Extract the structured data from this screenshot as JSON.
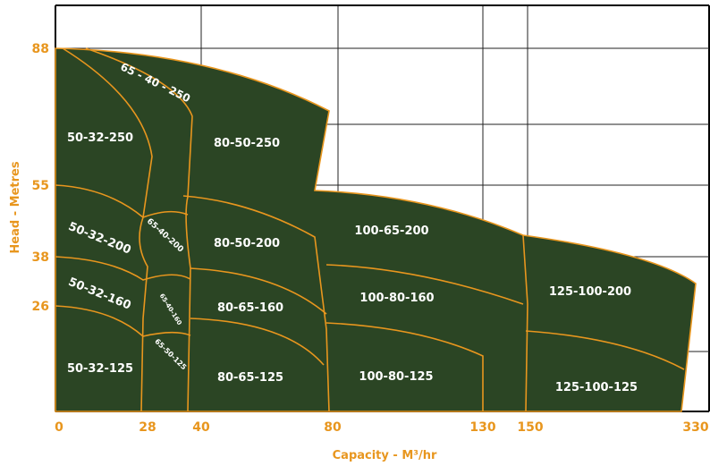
{
  "chart_data": {
    "type": "area",
    "title": "",
    "xlabel": "Capacity - M³/hr",
    "ylabel": "Head - Metres",
    "x_ticks": [
      "0",
      "28",
      "40",
      "80",
      "130",
      "150",
      "330"
    ],
    "y_ticks": [
      "88",
      "55",
      "38",
      "26"
    ],
    "grid": true,
    "colors": {
      "fill": "#2b4524",
      "edge": "#e8961e",
      "grid": "#000000",
      "label": "#ffffff",
      "axis_text": "#e8961e"
    },
    "regions": [
      {
        "label": "50-32-250"
      },
      {
        "label": "65 - 40 - 250"
      },
      {
        "label": "80-50-250"
      },
      {
        "label": "50-32-200"
      },
      {
        "label": "65-40-200"
      },
      {
        "label": "80-50-200"
      },
      {
        "label": "100-65-200"
      },
      {
        "label": "50-32-160"
      },
      {
        "label": "65-40-160"
      },
      {
        "label": "80-65-160"
      },
      {
        "label": "100-80-160"
      },
      {
        "label": "125-100-200"
      },
      {
        "label": "50-32-125"
      },
      {
        "label": "65-50-125"
      },
      {
        "label": "80-65-125"
      },
      {
        "label": "100-80-125"
      },
      {
        "label": "125-100-125"
      }
    ]
  }
}
